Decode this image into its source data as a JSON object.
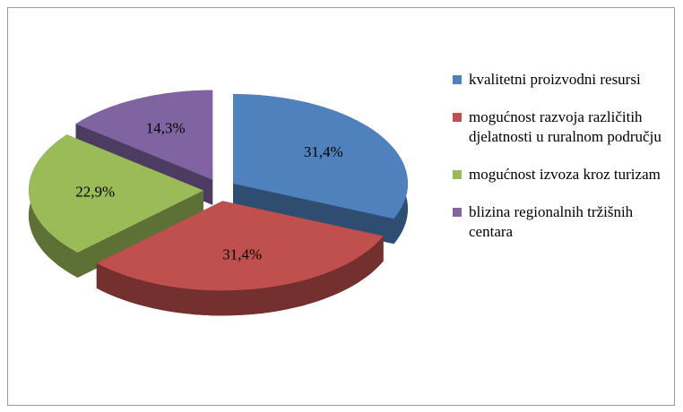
{
  "chart_data": {
    "type": "pie3d",
    "categories": [
      "kvalitetni proizvodni resursi",
      "mogućnost razvoja različitih djelatnosti u ruralnom području",
      "mogućnost izvoza kroz turizam",
      "blizina regionalnih tržišnih centara"
    ],
    "values": [
      31.4,
      31.4,
      22.9,
      14.3
    ],
    "value_labels": [
      "31,4%",
      "31,4%",
      "22,9%",
      "14,3%"
    ],
    "colors": [
      "#4f81bd",
      "#c0504d",
      "#9bbb59",
      "#8064a2"
    ],
    "legend": "right"
  }
}
